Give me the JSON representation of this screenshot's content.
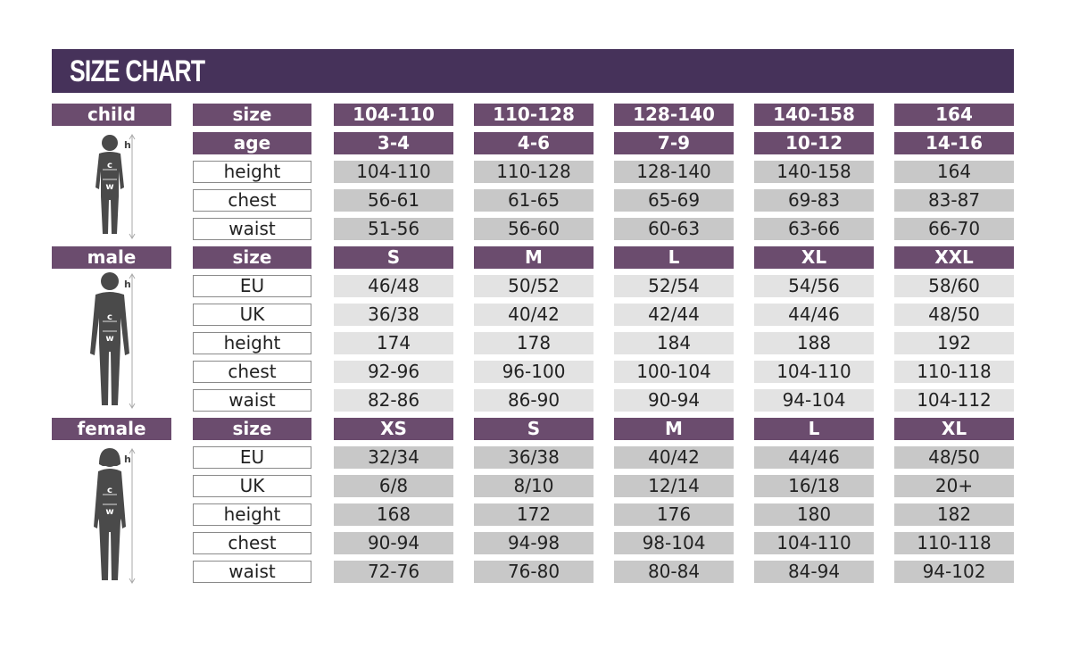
{
  "title": "SIZE CHART",
  "colors": {
    "title_bar": "#46325a",
    "header": "#6b4c6e",
    "cell_dark": "#c8c8c8",
    "cell_light": "#e3e3e3",
    "figure": "#4a4a4a"
  },
  "figure_labels": {
    "height": "h",
    "chest": "c",
    "waist": "w"
  },
  "sections": [
    {
      "category": "child",
      "figure": "child-silhouette-icon",
      "rows": [
        {
          "label": "size",
          "header": true,
          "values": [
            "104-110",
            "110-128",
            "128-140",
            "140-158",
            "164"
          ]
        },
        {
          "label": "age",
          "header": true,
          "values": [
            "3-4",
            "4-6",
            "7-9",
            "10-12",
            "14-16"
          ]
        },
        {
          "label": "height",
          "values": [
            "104-110",
            "110-128",
            "128-140",
            "140-158",
            "164"
          ]
        },
        {
          "label": "chest",
          "values": [
            "56-61",
            "61-65",
            "65-69",
            "69-83",
            "83-87"
          ]
        },
        {
          "label": "waist",
          "values": [
            "51-56",
            "56-60",
            "60-63",
            "63-66",
            "66-70"
          ]
        }
      ]
    },
    {
      "category": "male",
      "figure": "male-silhouette-icon",
      "rows": [
        {
          "label": "size",
          "header": true,
          "values": [
            "S",
            "M",
            "L",
            "XL",
            "XXL"
          ]
        },
        {
          "label": "EU",
          "values": [
            "46/48",
            "50/52",
            "52/54",
            "54/56",
            "58/60"
          ]
        },
        {
          "label": "UK",
          "values": [
            "36/38",
            "40/42",
            "42/44",
            "44/46",
            "48/50"
          ]
        },
        {
          "label": "height",
          "values": [
            "174",
            "178",
            "184",
            "188",
            "192"
          ]
        },
        {
          "label": "chest",
          "values": [
            "92-96",
            "96-100",
            "100-104",
            "104-110",
            "110-118"
          ]
        },
        {
          "label": "waist",
          "values": [
            "82-86",
            "86-90",
            "90-94",
            "94-104",
            "104-112"
          ]
        }
      ]
    },
    {
      "category": "female",
      "figure": "female-silhouette-icon",
      "rows": [
        {
          "label": "size",
          "header": true,
          "values": [
            "XS",
            "S",
            "M",
            "L",
            "XL"
          ]
        },
        {
          "label": "EU",
          "values": [
            "32/34",
            "36/38",
            "40/42",
            "44/46",
            "48/50"
          ]
        },
        {
          "label": "UK",
          "values": [
            "6/8",
            "8/10",
            "12/14",
            "16/18",
            "20+"
          ]
        },
        {
          "label": "height",
          "values": [
            "168",
            "172",
            "176",
            "180",
            "182"
          ]
        },
        {
          "label": "chest",
          "values": [
            "90-94",
            "94-98",
            "98-104",
            "104-110",
            "110-118"
          ]
        },
        {
          "label": "waist",
          "values": [
            "72-76",
            "76-80",
            "80-84",
            "84-94",
            "94-102"
          ]
        }
      ]
    }
  ]
}
